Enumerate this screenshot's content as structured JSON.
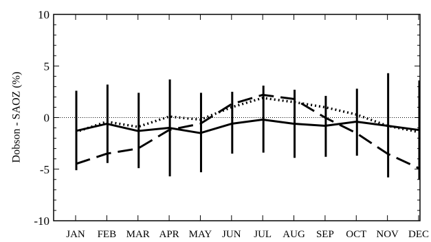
{
  "chart_data": {
    "type": "line",
    "ylabel": "Dobson - SAOZ (%)",
    "xlabel": "",
    "ylim": [
      -10,
      10
    ],
    "yticks": [
      -10,
      -5,
      0,
      5,
      10
    ],
    "categories": [
      "JAN",
      "FEB",
      "MAR",
      "APR",
      "MAY",
      "JUN",
      "JUL",
      "AUG",
      "SEP",
      "OCT",
      "NOV",
      "DEC"
    ],
    "zero_line": true,
    "series": [
      {
        "style": "solid",
        "values": [
          -1.3,
          -0.6,
          -1.3,
          -1.0,
          -1.5,
          -0.6,
          -0.2,
          -0.6,
          -0.8,
          -0.4,
          -0.8,
          -1.2
        ],
        "error_low": [
          -5.1,
          -4.4,
          -4.9,
          -5.7,
          -5.3,
          -3.5,
          -3.4,
          -3.9,
          -3.8,
          -3.7,
          -5.8,
          -6.0
        ],
        "error_high": [
          2.6,
          3.2,
          2.4,
          3.7,
          2.4,
          2.5,
          3.1,
          2.7,
          2.1,
          2.8,
          4.3,
          3.6
        ]
      },
      {
        "style": "dashed",
        "values": [
          -4.5,
          -3.5,
          -3.0,
          -1.2,
          -0.6,
          1.3,
          2.2,
          1.8,
          0.0,
          -1.5,
          -3.5,
          -4.9
        ]
      },
      {
        "style": "dotted",
        "values": [
          -1.4,
          -0.4,
          -0.9,
          0.1,
          -0.2,
          1.0,
          1.9,
          1.5,
          1.0,
          0.3,
          -0.8,
          -1.4
        ]
      }
    ]
  }
}
